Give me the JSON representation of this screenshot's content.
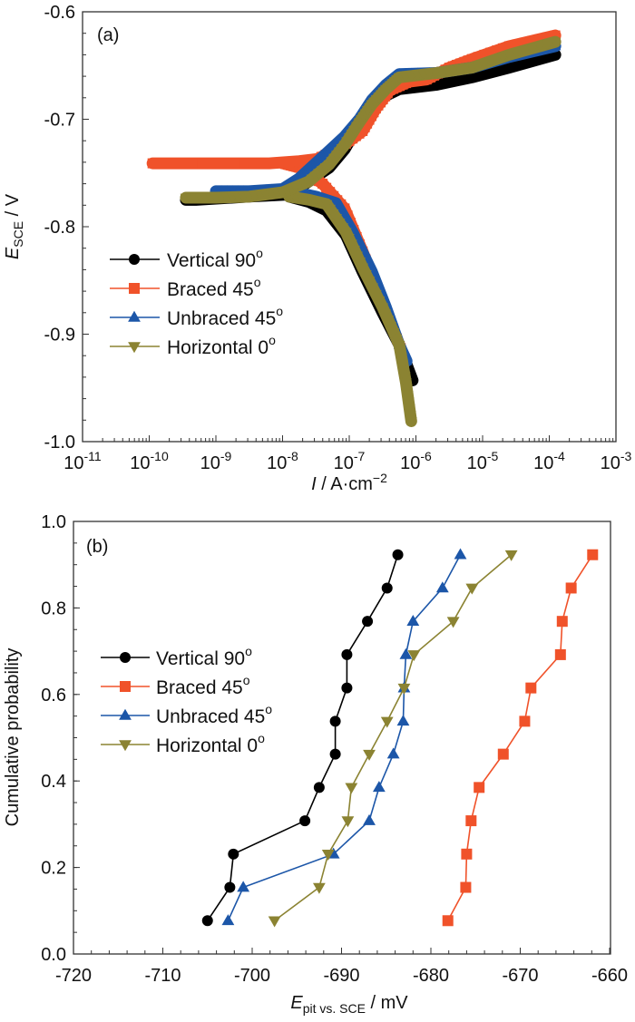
{
  "chart_data": [
    {
      "type": "line",
      "panel_label": "(a)",
      "title": "",
      "xlabel": "I / A·cm−2",
      "xlabel_main": "I",
      "xlabel_unit": " / A·cm",
      "xlabel_sup": "−2",
      "ylabel_main": "E",
      "ylabel_sub": "SCE",
      "ylabel_unit": " / V",
      "xscale": "log",
      "xlim_log10": [
        -11,
        -3
      ],
      "ylim": [
        -1.0,
        -0.6
      ],
      "x_ticks": [
        {
          "base": "10",
          "exp": "-11"
        },
        {
          "base": "10",
          "exp": "-10"
        },
        {
          "base": "10",
          "exp": "-9"
        },
        {
          "base": "10",
          "exp": "-8"
        },
        {
          "base": "10",
          "exp": "-7"
        },
        {
          "base": "10",
          "exp": "-6"
        },
        {
          "base": "10",
          "exp": "-5"
        },
        {
          "base": "10",
          "exp": "-4"
        },
        {
          "base": "10",
          "exp": "-3"
        }
      ],
      "y_ticks": [
        "-1.0",
        "-0.9",
        "-0.8",
        "-0.7",
        "-0.6"
      ],
      "legend_position": "left-middle",
      "series": [
        {
          "name": "Vertical 90",
          "sup": "o",
          "color": "#000000",
          "marker": "circle",
          "anodic": [
            [
              -9.45,
              -0.775
            ],
            [
              -9.3,
              -0.775
            ],
            [
              -8.5,
              -0.772
            ],
            [
              -7.9,
              -0.77
            ],
            [
              -7.61,
              -0.758
            ],
            [
              -7.3,
              -0.745
            ],
            [
              -7.07,
              -0.728
            ],
            [
              -6.85,
              -0.705
            ],
            [
              -6.66,
              -0.69
            ],
            [
              -6.45,
              -0.678
            ],
            [
              -6.25,
              -0.672
            ],
            [
              -5.7,
              -0.668
            ],
            [
              -5.16,
              -0.661
            ],
            [
              -4.6,
              -0.652
            ],
            [
              -3.91,
              -0.64
            ]
          ],
          "cathodic": [
            [
              -7.9,
              -0.772
            ],
            [
              -7.6,
              -0.777
            ],
            [
              -7.34,
              -0.785
            ],
            [
              -7.05,
              -0.808
            ],
            [
              -6.8,
              -0.842
            ],
            [
              -6.5,
              -0.88
            ],
            [
              -6.25,
              -0.91
            ],
            [
              -6.05,
              -0.943
            ]
          ]
        },
        {
          "name": "Braced 45",
          "sup": "o",
          "color": "#F0522A",
          "marker": "square",
          "anodic": [
            [
              -9.95,
              -0.741
            ],
            [
              -9.52,
              -0.741
            ],
            [
              -8.56,
              -0.741
            ],
            [
              -8.2,
              -0.741
            ],
            [
              -7.75,
              -0.739
            ],
            [
              -7.48,
              -0.737
            ],
            [
              -7.1,
              -0.725
            ],
            [
              -6.8,
              -0.711
            ],
            [
              -6.6,
              -0.69
            ],
            [
              -6.39,
              -0.673
            ],
            [
              -6.1,
              -0.665
            ],
            [
              -5.84,
              -0.663
            ],
            [
              -5.5,
              -0.652
            ],
            [
              -5.16,
              -0.644
            ],
            [
              -4.6,
              -0.632
            ],
            [
              -3.91,
              -0.622
            ]
          ],
          "cathodic": [
            [
              -8.0,
              -0.741
            ],
            [
              -7.75,
              -0.745
            ],
            [
              -7.4,
              -0.76
            ],
            [
              -7.07,
              -0.783
            ],
            [
              -6.8,
              -0.823
            ],
            [
              -6.52,
              -0.868
            ],
            [
              -6.17,
              -0.922
            ]
          ]
        },
        {
          "name": "Unbraced 45",
          "sup": "o",
          "color": "#1C56A8",
          "marker": "triangle-up",
          "anodic": [
            [
              -9.0,
              -0.767
            ],
            [
              -8.5,
              -0.767
            ],
            [
              -8.0,
              -0.765
            ],
            [
              -7.75,
              -0.755
            ],
            [
              -7.4,
              -0.735
            ],
            [
              -7.07,
              -0.716
            ],
            [
              -6.85,
              -0.7
            ],
            [
              -6.66,
              -0.682
            ],
            [
              -6.45,
              -0.668
            ],
            [
              -6.25,
              -0.658
            ],
            [
              -5.7,
              -0.657
            ],
            [
              -5.16,
              -0.652
            ],
            [
              -4.6,
              -0.642
            ],
            [
              -3.91,
              -0.632
            ]
          ],
          "cathodic": [
            [
              -7.8,
              -0.768
            ],
            [
              -7.5,
              -0.772
            ],
            [
              -7.2,
              -0.778
            ],
            [
              -6.95,
              -0.805
            ],
            [
              -6.66,
              -0.842
            ],
            [
              -6.45,
              -0.875
            ],
            [
              -6.25,
              -0.91
            ],
            [
              -6.14,
              -0.925
            ]
          ]
        },
        {
          "name": "Horizontal 0",
          "sup": "o",
          "color": "#8B8332",
          "marker": "triangle-down",
          "anodic": [
            [
              -9.45,
              -0.773
            ],
            [
              -9.0,
              -0.773
            ],
            [
              -8.5,
              -0.772
            ],
            [
              -8.0,
              -0.768
            ],
            [
              -7.61,
              -0.758
            ],
            [
              -7.3,
              -0.742
            ],
            [
              -7.07,
              -0.724
            ],
            [
              -6.85,
              -0.703
            ],
            [
              -6.66,
              -0.686
            ],
            [
              -6.45,
              -0.672
            ],
            [
              -6.25,
              -0.661
            ],
            [
              -5.7,
              -0.657
            ],
            [
              -5.16,
              -0.652
            ],
            [
              -4.6,
              -0.64
            ],
            [
              -3.91,
              -0.628
            ]
          ],
          "cathodic": [
            [
              -7.9,
              -0.772
            ],
            [
              -7.6,
              -0.775
            ],
            [
              -7.34,
              -0.779
            ],
            [
              -7.05,
              -0.805
            ],
            [
              -6.8,
              -0.838
            ],
            [
              -6.5,
              -0.875
            ],
            [
              -6.25,
              -0.91
            ],
            [
              -6.15,
              -0.945
            ],
            [
              -6.07,
              -0.981
            ]
          ]
        }
      ]
    },
    {
      "type": "line",
      "panel_label": "(b)",
      "title": "",
      "xlabel_main": "E",
      "xlabel_sub": "pit vs. SCE",
      "xlabel_unit": " / mV",
      "ylabel": "Cumulative probability",
      "xlim": [
        -720,
        -660
      ],
      "ylim": [
        0.0,
        1.0
      ],
      "x_ticks": [
        "-720",
        "-710",
        "-700",
        "-690",
        "-680",
        "-670",
        "-660"
      ],
      "y_ticks": [
        "0.0",
        "0.2",
        "0.4",
        "0.6",
        "0.8",
        "1.0"
      ],
      "legend_position": "left-middle",
      "y_values": [
        0.077,
        0.154,
        0.231,
        0.308,
        0.385,
        0.462,
        0.538,
        0.615,
        0.692,
        0.769,
        0.846,
        0.923
      ],
      "series": [
        {
          "name": "Vertical 90",
          "sup": "o",
          "color": "#000000",
          "marker": "circle",
          "x": [
            -705.0,
            -702.5,
            -702.1,
            -694.1,
            -692.5,
            -690.7,
            -690.7,
            -689.4,
            -689.4,
            -687.1,
            -684.9,
            -683.7
          ]
        },
        {
          "name": "Braced 45",
          "sup": "o",
          "color": "#F0522A",
          "marker": "square",
          "x": [
            -678.1,
            -676.1,
            -676.0,
            -675.5,
            -674.6,
            -671.9,
            -669.5,
            -668.8,
            -665.5,
            -665.3,
            -664.3,
            -661.9
          ]
        },
        {
          "name": "Unbraced 45",
          "sup": "o",
          "color": "#1C56A8",
          "marker": "triangle-up",
          "x": [
            -702.7,
            -701.0,
            -690.9,
            -686.9,
            -685.8,
            -684.2,
            -683.1,
            -683.0,
            -682.8,
            -682.0,
            -678.7,
            -676.7
          ]
        },
        {
          "name": "Horizontal 0",
          "sup": "o",
          "color": "#8B8332",
          "marker": "triangle-down",
          "x": [
            -697.5,
            -692.5,
            -691.5,
            -689.3,
            -688.9,
            -686.9,
            -684.9,
            -683.0,
            -681.9,
            -677.5,
            -675.4,
            -671.0
          ]
        }
      ]
    }
  ]
}
